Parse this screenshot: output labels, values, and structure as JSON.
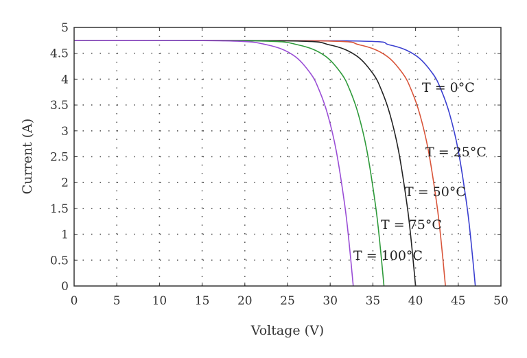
{
  "chart_data": {
    "type": "line",
    "title": "",
    "xlabel": "Voltage (V)",
    "ylabel": "Current (A)",
    "xlim": [
      0,
      50
    ],
    "ylim": [
      0,
      5
    ],
    "xticks": [
      "0",
      "5",
      "10",
      "15",
      "20",
      "25",
      "30",
      "35",
      "40",
      "45",
      "50"
    ],
    "yticks": [
      "0",
      "0.5",
      "1",
      "1.5",
      "2",
      "2.5",
      "3",
      "3.5",
      "4",
      "4.5",
      "5"
    ],
    "grid": "dotted",
    "legend": "none",
    "series": [
      {
        "name": "T = 0°C",
        "color": "#3a3fd0",
        "x": [
          0,
          32,
          37,
          40,
          42,
          43,
          44,
          45,
          46,
          46.5,
          47
        ],
        "y": [
          4.75,
          4.74,
          4.66,
          4.46,
          4.11,
          3.79,
          3.32,
          2.62,
          1.57,
          0.86,
          0
        ]
      },
      {
        "name": "T = 25°C",
        "color": "#d9553a",
        "x": [
          0,
          28.5,
          33.5,
          36.5,
          38.5,
          39.5,
          40.5,
          41.5,
          42.5,
          43,
          43.5
        ],
        "y": [
          4.75,
          4.74,
          4.66,
          4.46,
          4.11,
          3.79,
          3.32,
          2.62,
          1.57,
          0.86,
          0
        ]
      },
      {
        "name": "T = 50°C",
        "color": "#222222",
        "x": [
          0,
          25,
          30,
          33,
          35,
          36,
          37,
          38,
          39,
          39.5,
          40
        ],
        "y": [
          4.75,
          4.74,
          4.66,
          4.46,
          4.11,
          3.79,
          3.32,
          2.62,
          1.57,
          0.86,
          0
        ]
      },
      {
        "name": "T = 75°C",
        "color": "#2e9a3a",
        "x": [
          0,
          21.3,
          26.3,
          29.3,
          31.3,
          32.3,
          33.3,
          34.3,
          35.3,
          35.8,
          36.3
        ],
        "y": [
          4.75,
          4.74,
          4.66,
          4.46,
          4.11,
          3.79,
          3.32,
          2.62,
          1.57,
          0.86,
          0
        ]
      },
      {
        "name": "T = 100°C",
        "color": "#9a4ed6",
        "x": [
          0,
          17.7,
          22.7,
          25.7,
          27.7,
          28.7,
          29.7,
          30.7,
          31.7,
          32.2,
          32.7
        ],
        "y": [
          4.75,
          4.74,
          4.66,
          4.46,
          4.11,
          3.79,
          3.32,
          2.62,
          1.57,
          0.86,
          0
        ]
      }
    ],
    "annotations": [
      "T = 0°C",
      "T = 25°C",
      "T = 50°C",
      "T = 75°C",
      "T = 100°C"
    ]
  }
}
